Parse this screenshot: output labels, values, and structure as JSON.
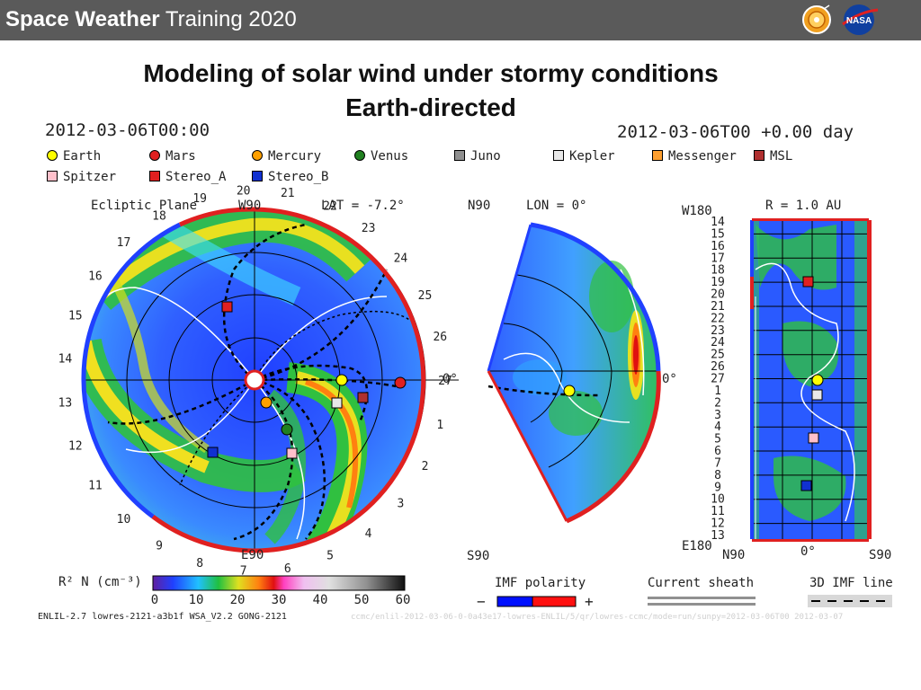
{
  "header": {
    "title_bold": "Space Weather",
    "title_rest": " Training 2020",
    "logo1": "sun-logo-icon",
    "logo2": "nasa-logo-icon",
    "logo2_text": "NASA"
  },
  "slide": {
    "title_line1": "Modeling of solar wind under stormy conditions",
    "title_line2": "Earth-directed"
  },
  "plot": {
    "time_left": "2012-03-06T00:00",
    "time_right": "2012-03-06T00 +0.00 day",
    "legend": [
      {
        "label": "Earth",
        "color": "#ffff00",
        "shape": "circle"
      },
      {
        "label": "Mars",
        "color": "#e02020",
        "shape": "circle"
      },
      {
        "label": "Mercury",
        "color": "#ffa000",
        "shape": "circle"
      },
      {
        "label": "Venus",
        "color": "#208020",
        "shape": "circle"
      },
      {
        "label": "Juno",
        "color": "#909090",
        "shape": "square"
      },
      {
        "label": "Kepler",
        "color": "#e8e8e8",
        "shape": "square"
      },
      {
        "label": "Messenger",
        "color": "#ffa030",
        "shape": "square"
      },
      {
        "label": "MSL",
        "color": "#b03030",
        "shape": "square"
      },
      {
        "label": "Spitzer",
        "color": "#ffc0cb",
        "shape": "square"
      },
      {
        "label": "Stereo_A",
        "color": "#e02020",
        "shape": "square"
      },
      {
        "label": "Stereo_B",
        "color": "#1030d0",
        "shape": "square"
      }
    ],
    "ecliptic": {
      "label": "Ecliptic Plane",
      "w90": "W90",
      "lat": "LAT = -7.2°",
      "e90": "E90",
      "zero": "0°",
      "ticks": [
        "27",
        "1",
        "2",
        "3",
        "4",
        "5",
        "6",
        "7",
        "8",
        "9",
        "10",
        "11",
        "12",
        "13",
        "14",
        "15",
        "16",
        "17",
        "18",
        "19",
        "20",
        "21",
        "22",
        "23",
        "24",
        "25",
        "26"
      ]
    },
    "meridional": {
      "n90": "N90",
      "lon": "LON = 0°",
      "s90": "S90",
      "zero": "0°"
    },
    "radial": {
      "w180": "W180",
      "r": "R = 1.0 AU",
      "e180": "E180",
      "n90": "N90",
      "zero": "0°",
      "s90": "S90",
      "rows": [
        "14",
        "15",
        "16",
        "17",
        "18",
        "19",
        "20",
        "21",
        "22",
        "23",
        "24",
        "25",
        "26",
        "27",
        "1",
        "2",
        "3",
        "4",
        "5",
        "6",
        "7",
        "8",
        "9",
        "10",
        "11",
        "12",
        "13"
      ]
    },
    "colorbar": {
      "label": "R² N (cm⁻³)",
      "ticks": [
        "0",
        "10",
        "20",
        "30",
        "40",
        "50",
        "60"
      ]
    },
    "imf": {
      "label": "IMF polarity",
      "minus": "−",
      "plus": "+",
      "minus_color": "#0010ff",
      "plus_color": "#ff1010"
    },
    "sheath": {
      "label": "Current sheath"
    },
    "imf_line": {
      "label": "3D IMF line"
    },
    "footer": "ENLIL-2.7 lowres-2121-a3b1f WSA_V2.2 GONG-2121",
    "faint_footer": "ccmc/enlil-2012-03-06-0-0a43e17-lowres-ENLIL/5/qr/lowres-ccmc/mode=run/sunpy=2012-03-06T00 2012-03-07"
  }
}
